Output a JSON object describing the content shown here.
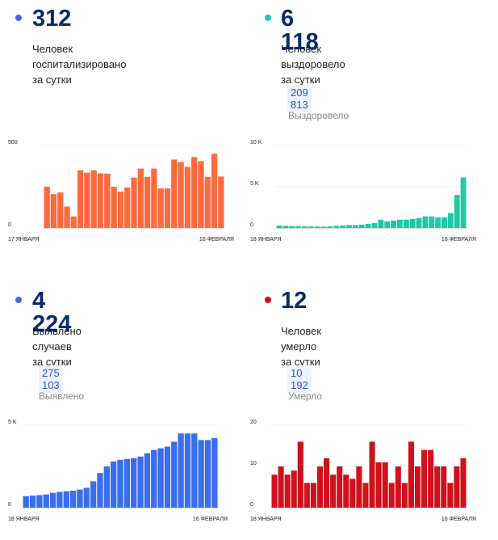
{
  "panels": [
    {
      "id": "hospitalized",
      "value": "312",
      "caption": "Человек госпитализировано\nза сутки",
      "total": "",
      "total_label": "",
      "color": "#ff6a3d",
      "dot_color": "#3a6ef0"
    },
    {
      "id": "recovered",
      "value": "6 118",
      "caption": "Человек выздоровело\nза сутки",
      "total": "209 813",
      "total_label": "Выздоровело",
      "color": "#1ec9a4",
      "dot_color": "#1ec9a4"
    },
    {
      "id": "cases",
      "value": "4 224",
      "caption": "Выявлено случаев\nза сутки",
      "total": "275 103",
      "total_label": "Выявлено",
      "color": "#3a6ef0",
      "dot_color": "#3a6ef0"
    },
    {
      "id": "deaths",
      "value": "12",
      "caption": "Человек умерло\nза сутки",
      "total": "10 192",
      "total_label": "Умерло",
      "color": "#d0101b",
      "dot_color": "#d0101b"
    }
  ],
  "chart_data": [
    {
      "type": "bar",
      "series_of": "hospitalized",
      "x_start_label": "17 ЯНВАРЯ",
      "x_end_label": "16 ФЕВРАЛЯ",
      "y_ticks": [
        "0",
        "500"
      ],
      "ylim": [
        0,
        500
      ],
      "values": [
        250,
        205,
        215,
        130,
        70,
        350,
        335,
        350,
        330,
        330,
        250,
        220,
        245,
        305,
        360,
        310,
        360,
        240,
        240,
        415,
        400,
        370,
        430,
        405,
        310,
        450,
        312
      ]
    },
    {
      "type": "bar",
      "series_of": "recovered",
      "x_start_label": "18 ЯНВАРЯ",
      "x_end_label": "16 ФЕВРАЛЯ",
      "y_ticks": [
        "0",
        "5 K",
        "10 K"
      ],
      "ylim": [
        0,
        10000
      ],
      "values": [
        300,
        250,
        220,
        230,
        200,
        180,
        170,
        160,
        200,
        250,
        300,
        350,
        350,
        400,
        500,
        600,
        1000,
        800,
        900,
        1000,
        1000,
        1100,
        1200,
        1400,
        1400,
        1300,
        1300,
        1800,
        4000,
        6118
      ]
    },
    {
      "type": "bar",
      "series_of": "cases",
      "x_start_label": "18 ЯНВАРЯ",
      "x_end_label": "16 ФЕВРАЛЯ",
      "y_ticks": [
        "0",
        "5 K"
      ],
      "ylim": [
        0,
        5000
      ],
      "values": [
        700,
        730,
        760,
        800,
        900,
        960,
        1000,
        1030,
        1100,
        1200,
        1600,
        2100,
        2500,
        2800,
        2900,
        2950,
        3000,
        3100,
        3300,
        3500,
        3600,
        3700,
        4000,
        4500,
        4500,
        4500,
        4100,
        4100,
        4224
      ]
    },
    {
      "type": "bar",
      "series_of": "deaths",
      "x_start_label": "18 ЯНВАРЯ",
      "x_end_label": "16 ФЕВРАЛЯ",
      "y_ticks": [
        "0",
        "10",
        "20"
      ],
      "ylim": [
        0,
        20
      ],
      "values": [
        8,
        10,
        8,
        9,
        16,
        6,
        6,
        10,
        12,
        8,
        10,
        8,
        7,
        10,
        6,
        16,
        11,
        11,
        6,
        10,
        6,
        16,
        10,
        14,
        14,
        10,
        10,
        6,
        10,
        12
      ]
    }
  ]
}
